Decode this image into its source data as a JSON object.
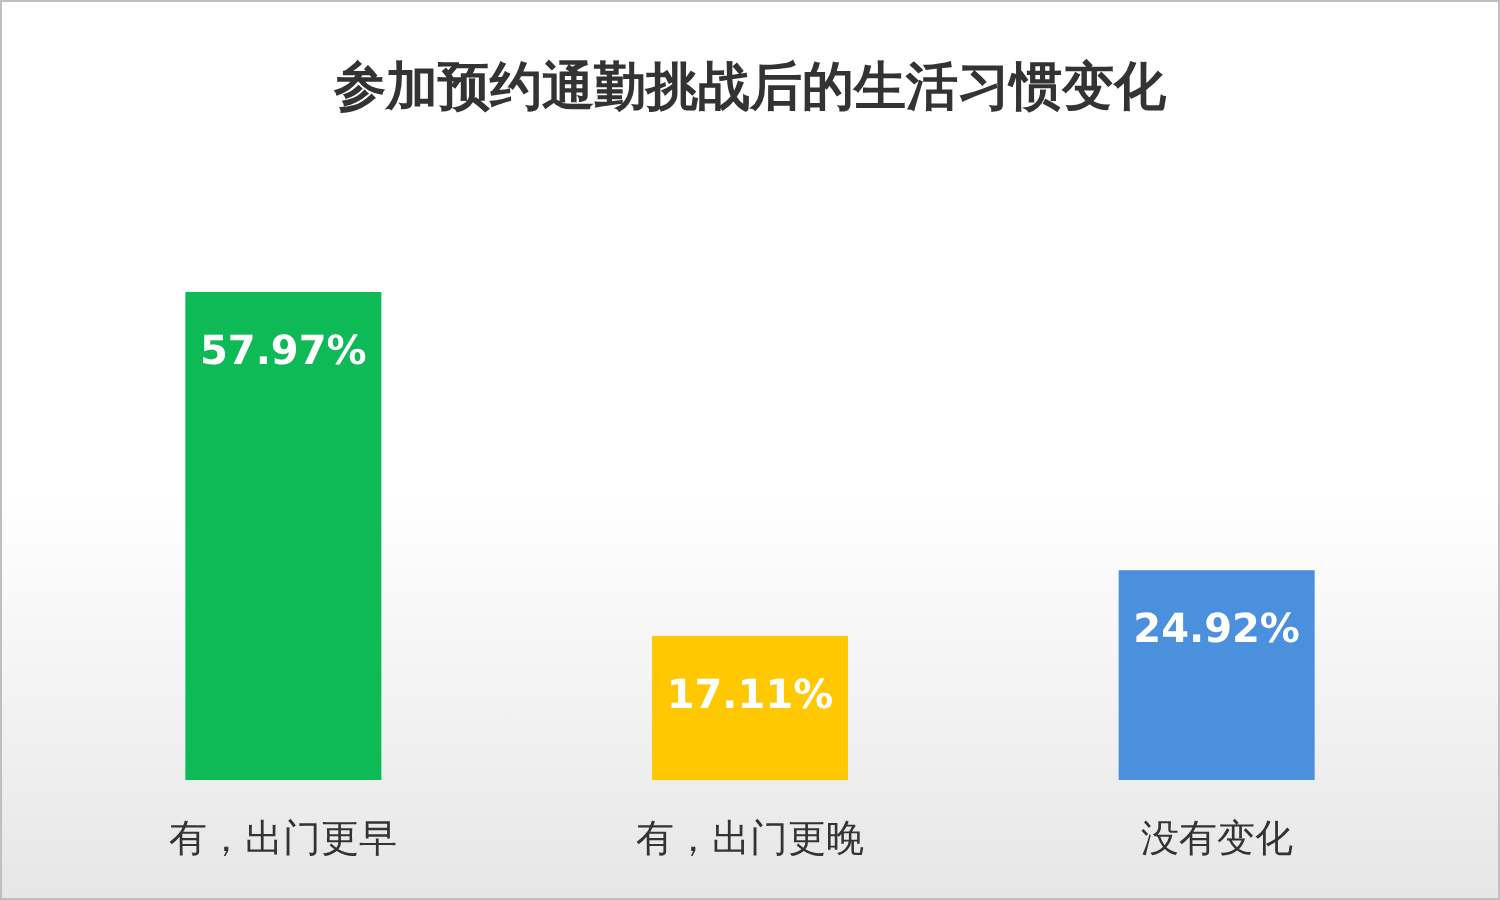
{
  "chart_data": {
    "type": "bar",
    "title": "参加预约通勤挑战后的生活习惯变化",
    "categories": [
      "有，出门更早",
      "有，出门更晚",
      "没有变化"
    ],
    "values": [
      57.97,
      17.11,
      24.92
    ],
    "colors": [
      "#0dba55",
      "#ffc800",
      "#4a90dc"
    ],
    "value_labels": [
      "57.97%",
      "17.11%",
      "24.92%"
    ]
  }
}
